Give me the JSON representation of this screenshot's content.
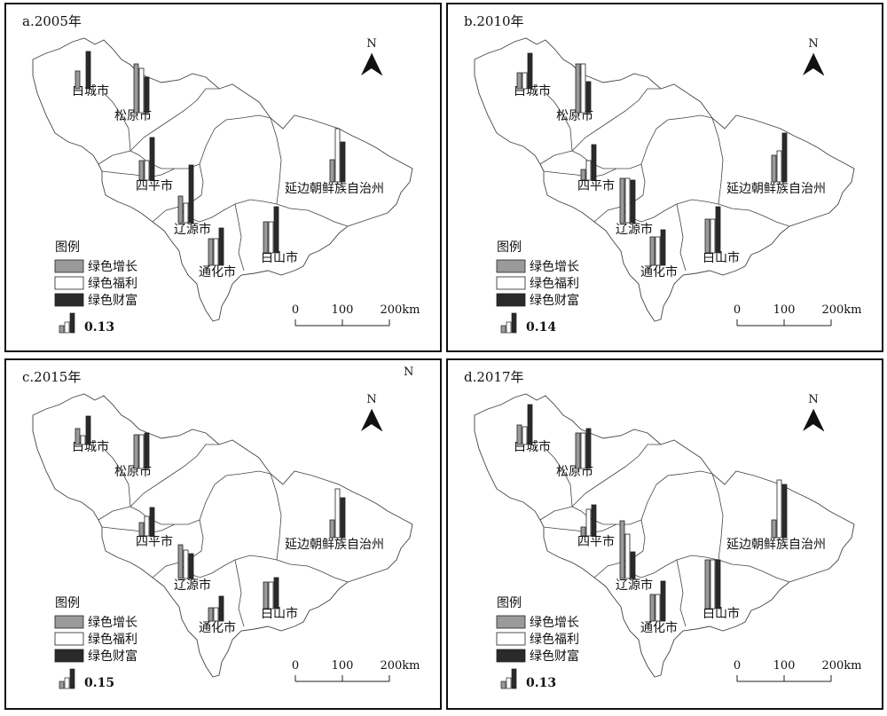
{
  "panels": [
    {
      "title": "a.2005年",
      "scale_value": "0.13",
      "bars": {
        "白城市": [
          0.2,
          0.0,
          0.42
        ],
        "松原市": [
          0.55,
          0.5,
          0.4
        ],
        "四平市": [
          0.22,
          0.22,
          0.48
        ],
        "辽源市": [
          0.3,
          0.22,
          0.65
        ],
        "通化市": [
          0.3,
          0.3,
          0.42
        ],
        "白山市": [
          0.35,
          0.35,
          0.52
        ],
        "延边朝鲜族自治州": [
          0.25,
          0.6,
          0.45
        ]
      }
    },
    {
      "title": "b.2010年",
      "scale_value": "0.14",
      "bars": {
        "白城市": [
          0.18,
          0.18,
          0.4
        ],
        "松原市": [
          0.55,
          0.55,
          0.35
        ],
        "四平市": [
          0.12,
          0.22,
          0.4
        ],
        "辽源市": [
          0.5,
          0.5,
          0.48
        ],
        "通化市": [
          0.32,
          0.32,
          0.4
        ],
        "白山市": [
          0.38,
          0.38,
          0.52
        ],
        "延边朝鲜族自治州": [
          0.3,
          0.35,
          0.55
        ]
      }
    },
    {
      "title": "c.2015年",
      "scale_value": "0.15",
      "stray": "N",
      "bars": {
        "白城市": [
          0.18,
          0.1,
          0.32
        ],
        "松原市": [
          0.38,
          0.38,
          0.4
        ],
        "四平市": [
          0.15,
          0.22,
          0.32
        ],
        "辽源市": [
          0.38,
          0.32,
          0.28
        ],
        "通化市": [
          0.15,
          0.15,
          0.28
        ],
        "白山市": [
          0.3,
          0.3,
          0.35
        ],
        "延边朝鲜族自治州": [
          0.2,
          0.55,
          0.45
        ]
      }
    },
    {
      "title": "d.2017年",
      "scale_value": "0.13",
      "bars": {
        "白城市": [
          0.22,
          0.2,
          0.45
        ],
        "松原市": [
          0.4,
          0.4,
          0.45
        ],
        "四平市": [
          0.1,
          0.3,
          0.35
        ],
        "辽源市": [
          0.65,
          0.5,
          0.3
        ],
        "通化市": [
          0.3,
          0.3,
          0.45
        ],
        "白山市": [
          0.55,
          0.55,
          0.55
        ],
        "延边朝鲜族自治州": [
          0.2,
          0.65,
          0.6
        ]
      }
    }
  ],
  "regions": [
    "白城市",
    "松原市",
    "四平市",
    "辽源市",
    "通化市",
    "白山市",
    "延边朝鲜族自治州"
  ],
  "north": "N",
  "legend": {
    "title": "图例",
    "items": [
      "绿色增长",
      "绿色福利",
      "绿色财富"
    ]
  },
  "scale_labels": [
    "0",
    "100",
    "200km"
  ],
  "colors": {
    "growth": "#9a9a9a",
    "welfare": "#ffffff",
    "wealth": "#2a2a2a",
    "boundary": "#444444"
  }
}
